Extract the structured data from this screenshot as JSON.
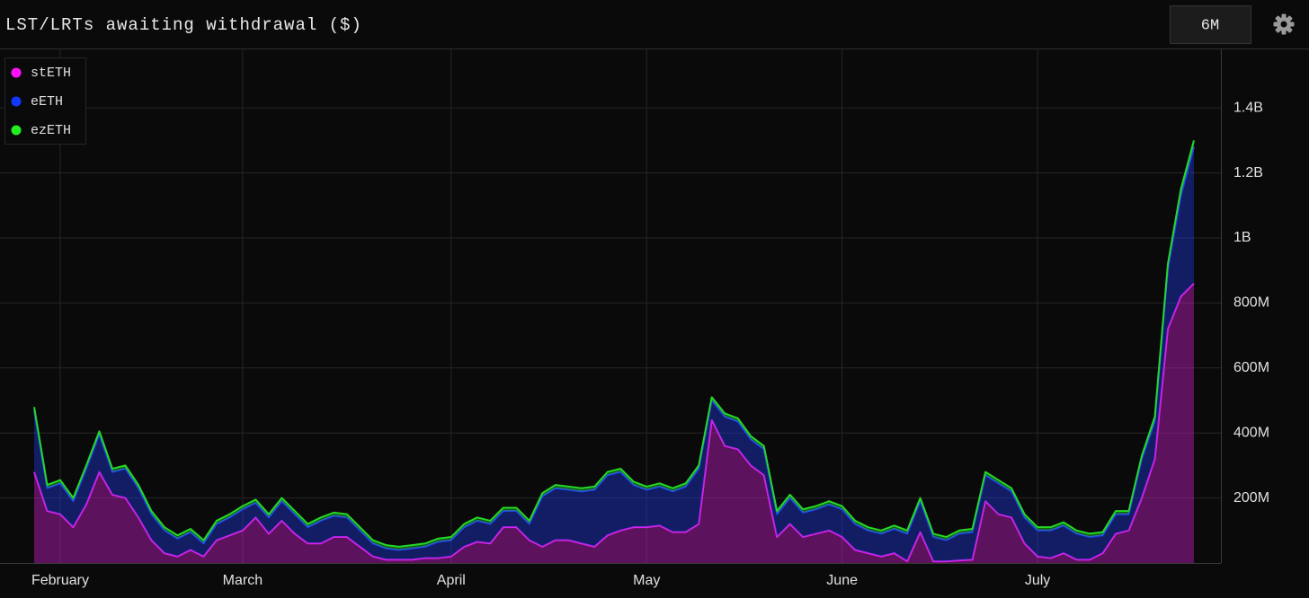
{
  "controls": {
    "range": "6M"
  },
  "chart_data": {
    "type": "area",
    "stacked": true,
    "title": "LST/LRTs awaiting withdrawal ($)",
    "legend": "top-left",
    "grid": true,
    "categories": [
      null,
      null,
      "February",
      null,
      null,
      null,
      null,
      null,
      null,
      null,
      null,
      null,
      null,
      null,
      null,
      null,
      "March",
      null,
      null,
      null,
      null,
      null,
      null,
      null,
      null,
      null,
      null,
      null,
      null,
      null,
      null,
      null,
      "April",
      null,
      null,
      null,
      null,
      null,
      null,
      null,
      null,
      null,
      null,
      null,
      null,
      null,
      null,
      "May",
      null,
      null,
      null,
      null,
      null,
      null,
      null,
      null,
      null,
      null,
      null,
      null,
      null,
      null,
      "June",
      null,
      null,
      null,
      null,
      null,
      null,
      null,
      null,
      null,
      null,
      null,
      null,
      null,
      null,
      "July",
      null,
      null,
      null,
      null,
      null,
      null,
      null,
      null,
      null,
      null,
      null,
      null
    ],
    "ylim": [
      0,
      1580000000.0
    ],
    "yticks": [
      {
        "value": 200000000.0,
        "label": "200M"
      },
      {
        "value": 400000000.0,
        "label": "400M"
      },
      {
        "value": 600000000.0,
        "label": "600M"
      },
      {
        "value": 800000000.0,
        "label": "800M"
      },
      {
        "value": 1000000000.0,
        "label": "1B"
      },
      {
        "value": 1200000000.0,
        "label": "1.2B"
      },
      {
        "value": 1400000000.0,
        "label": "1.4B"
      }
    ],
    "series": [
      {
        "name": "stETH",
        "color": "#e61fe6",
        "legend_color": "#ff10ff",
        "values": [
          280000000.0,
          160000000.0,
          150000000.0,
          110000000.0,
          180000000.0,
          280000000.0,
          210000000.0,
          200000000.0,
          140000000.0,
          70000000.0,
          30000000.0,
          20000000.0,
          40000000.0,
          20000000.0,
          70000000.0,
          85000000.0,
          100000000.0,
          140000000.0,
          90000000.0,
          130000000.0,
          90000000.0,
          60000000.0,
          60000000.0,
          80000000.0,
          80000000.0,
          50000000.0,
          20000000.0,
          10000000.0,
          10000000.0,
          10000000.0,
          15000000.0,
          15000000.0,
          20000000.0,
          50000000.0,
          65000000.0,
          60000000.0,
          110000000.0,
          110000000.0,
          70000000.0,
          50000000.0,
          70000000.0,
          70000000.0,
          60000000.0,
          50000000.0,
          85000000.0,
          100000000.0,
          110000000.0,
          110000000.0,
          115000000.0,
          95000000.0,
          95000000.0,
          120000000.0,
          440000000.0,
          360000000.0,
          350000000.0,
          300000000.0,
          270000000.0,
          80000000.0,
          120000000.0,
          80000000.0,
          90000000.0,
          100000000.0,
          80000000.0,
          40000000.0,
          30000000.0,
          20000000.0,
          30000000.0,
          5000000.0,
          95000000.0,
          5000000.0,
          5000000.0,
          8000000.0,
          10000000.0,
          190000000.0,
          150000000.0,
          140000000.0,
          60000000.0,
          20000000.0,
          15000000.0,
          30000000.0,
          10000000.0,
          10000000.0,
          30000000.0,
          90000000.0,
          100000000.0,
          200000000.0,
          320000000.0,
          720000000.0,
          820000000.0,
          860000000.0
        ]
      },
      {
        "name": "eETH",
        "color": "#1f3cf5",
        "legend_color": "#1038ff",
        "values": [
          190000000.0,
          70000000.0,
          95000000.0,
          80000000.0,
          110000000.0,
          115000000.0,
          70000000.0,
          90000000.0,
          90000000.0,
          80000000.0,
          70000000.0,
          55000000.0,
          55000000.0,
          40000000.0,
          50000000.0,
          55000000.0,
          65000000.0,
          45000000.0,
          50000000.0,
          60000000.0,
          60000000.0,
          50000000.0,
          70000000.0,
          65000000.0,
          60000000.0,
          50000000.0,
          40000000.0,
          35000000.0,
          30000000.0,
          35000000.0,
          35000000.0,
          50000000.0,
          50000000.0,
          60000000.0,
          65000000.0,
          60000000.0,
          50000000.0,
          50000000.0,
          50000000.0,
          155000000.0,
          160000000.0,
          155000000.0,
          160000000.0,
          175000000.0,
          185000000.0,
          180000000.0,
          130000000.0,
          115000000.0,
          120000000.0,
          125000000.0,
          140000000.0,
          170000000.0,
          60000000.0,
          90000000.0,
          85000000.0,
          80000000.0,
          80000000.0,
          70000000.0,
          80000000.0,
          75000000.0,
          75000000.0,
          80000000.0,
          85000000.0,
          80000000.0,
          70000000.0,
          70000000.0,
          75000000.0,
          85000000.0,
          95000000.0,
          75000000.0,
          65000000.0,
          82000000.0,
          85000000.0,
          80000000.0,
          95000000.0,
          80000000.0,
          80000000.0,
          80000000.0,
          85000000.0,
          85000000.0,
          80000000.0,
          70000000.0,
          55000000.0,
          60000000.0,
          50000000.0,
          120000000.0,
          115000000.0,
          185000000.0,
          310000000.0,
          420000000.0
        ]
      },
      {
        "name": "ezETH",
        "color": "#25d925",
        "legend_color": "#22ee22",
        "values": [
          10000000.0,
          10000000.0,
          10000000.0,
          10000000.0,
          10000000.0,
          10000000.0,
          10000000.0,
          10000000.0,
          10000000.0,
          10000000.0,
          10000000.0,
          10000000.0,
          10000000.0,
          10000000.0,
          10000000.0,
          10000000.0,
          10000000.0,
          10000000.0,
          10000000.0,
          10000000.0,
          10000000.0,
          10000000.0,
          10000000.0,
          10000000.0,
          10000000.0,
          10000000.0,
          10000000.0,
          10000000.0,
          10000000.0,
          10000000.0,
          10000000.0,
          10000000.0,
          10000000.0,
          10000000.0,
          10000000.0,
          10000000.0,
          10000000.0,
          10000000.0,
          10000000.0,
          10000000.0,
          10000000.0,
          10000000.0,
          10000000.0,
          10000000.0,
          10000000.0,
          10000000.0,
          10000000.0,
          10000000.0,
          10000000.0,
          10000000.0,
          10000000.0,
          10000000.0,
          10000000.0,
          10000000.0,
          10000000.0,
          10000000.0,
          10000000.0,
          10000000.0,
          10000000.0,
          10000000.0,
          10000000.0,
          10000000.0,
          10000000.0,
          10000000.0,
          10000000.0,
          10000000.0,
          10000000.0,
          10000000.0,
          10000000.0,
          10000000.0,
          10000000.0,
          10000000.0,
          10000000.0,
          10000000.0,
          10000000.0,
          10000000.0,
          10000000.0,
          10000000.0,
          10000000.0,
          10000000.0,
          10000000.0,
          10000000.0,
          10000000.0,
          10000000.0,
          10000000.0,
          10000000.0,
          15000000.0,
          15000000.0,
          20000000.0,
          20000000.0
        ]
      }
    ]
  }
}
